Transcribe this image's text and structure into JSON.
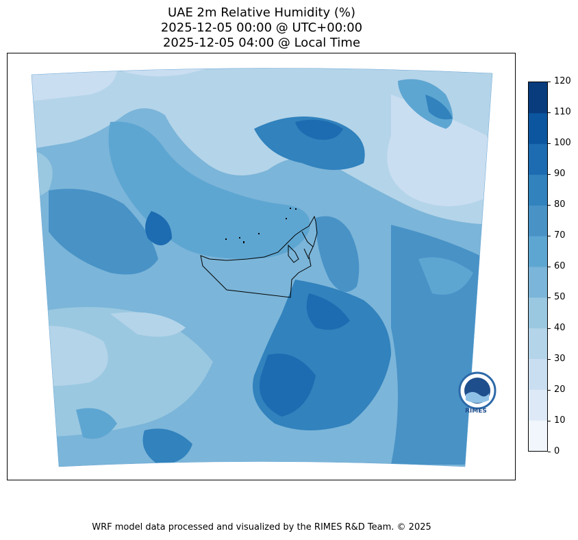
{
  "title_lines": [
    "UAE 2m Relative Humidity (%)",
    "2025-12-05 00:00 @ UTC+00:00",
    "2025-12-05 04:00 @ Local Time"
  ],
  "colorbar": {
    "ticks": [
      "0",
      "10",
      "20",
      "30",
      "40",
      "50",
      "60",
      "70",
      "80",
      "90",
      "100",
      "110",
      "120"
    ],
    "colors": [
      "#f0f6fc",
      "#dde9f6",
      "#cadef1",
      "#b4d4e9",
      "#9ac8e0",
      "#7bb5d9",
      "#5ea6d2",
      "#4892c6",
      "#3182bd",
      "#1d6cb1",
      "#0c56a0",
      "#083c7d"
    ]
  },
  "logo": {
    "text": "RIMES"
  },
  "footer": "WRF model data processed and visualized by the RIMES R&D Team. © 2025"
}
